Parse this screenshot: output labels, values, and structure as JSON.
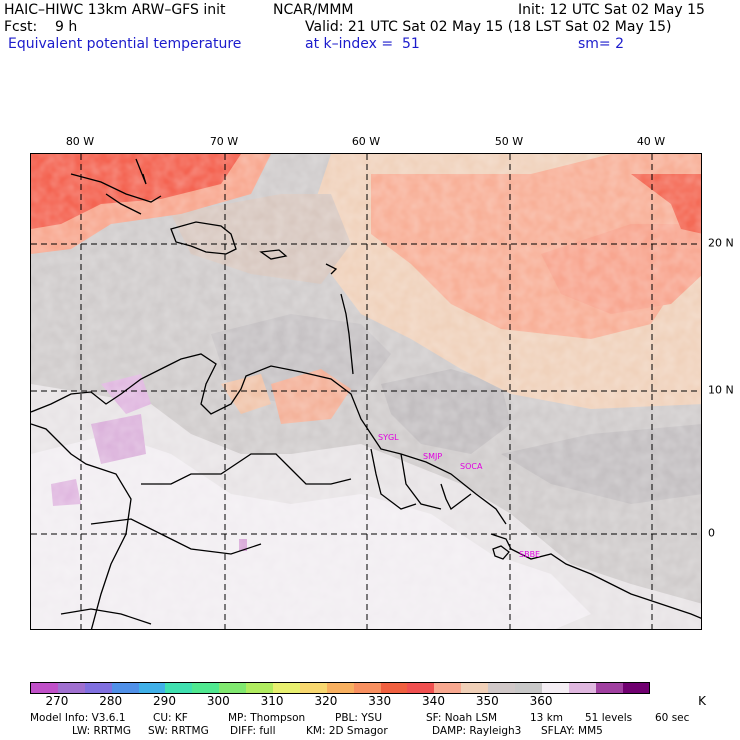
{
  "header": {
    "model": "HAIC–HIWC 13km ARW–GFS init",
    "org": "NCAR/MMM",
    "init": "Init: 12 UTC Sat 02 May 15",
    "fcst": "Fcst:    9 h",
    "valid": "Valid: 21 UTC Sat 02 May 15 (18 LST Sat 02 May 15)",
    "field": "Equivalent potential temperature",
    "level": "at k–index =  51",
    "sm": "sm= 2"
  },
  "lon_labels": [
    "80 W",
    "70 W",
    "60 W",
    "50 W",
    "40 W"
  ],
  "lat_labels": [
    "20 N",
    "10 N",
    "0"
  ],
  "stations": [
    "SYGL",
    "SMJP",
    "SOCA",
    "SBBE"
  ],
  "colorbar": {
    "colors": [
      "#c050c8",
      "#a070d0",
      "#8070e0",
      "#5090e8",
      "#40b0e8",
      "#40e0b0",
      "#50e890",
      "#80e870",
      "#b0ec60",
      "#e8f070",
      "#f8d870",
      "#f8b060",
      "#f89060",
      "#f06040",
      "#f05050",
      "#f8a890",
      "#f0d0b8",
      "#d0c8c8",
      "#c8c8c8",
      "#f4eef4",
      "#e0b8e0",
      "#a040a0",
      "#700070"
    ],
    "tick_labels": [
      "270",
      "280",
      "290",
      "300",
      "310",
      "320",
      "330",
      "340",
      "350",
      "360"
    ],
    "unit": "K"
  },
  "model_info": {
    "line1": [
      "Model Info: V3.6.1",
      "CU: KF",
      "MP: Thompson",
      "PBL: YSU",
      "SF: Noah LSM",
      "13 km",
      "51 levels",
      "60 sec"
    ],
    "line2": [
      "LW: RRTMG",
      "SW: RRTMG",
      "DIFF: full",
      "KM: 2D Smagor",
      "DAMP: Rayleigh3",
      "SFLAY: MM5"
    ]
  }
}
